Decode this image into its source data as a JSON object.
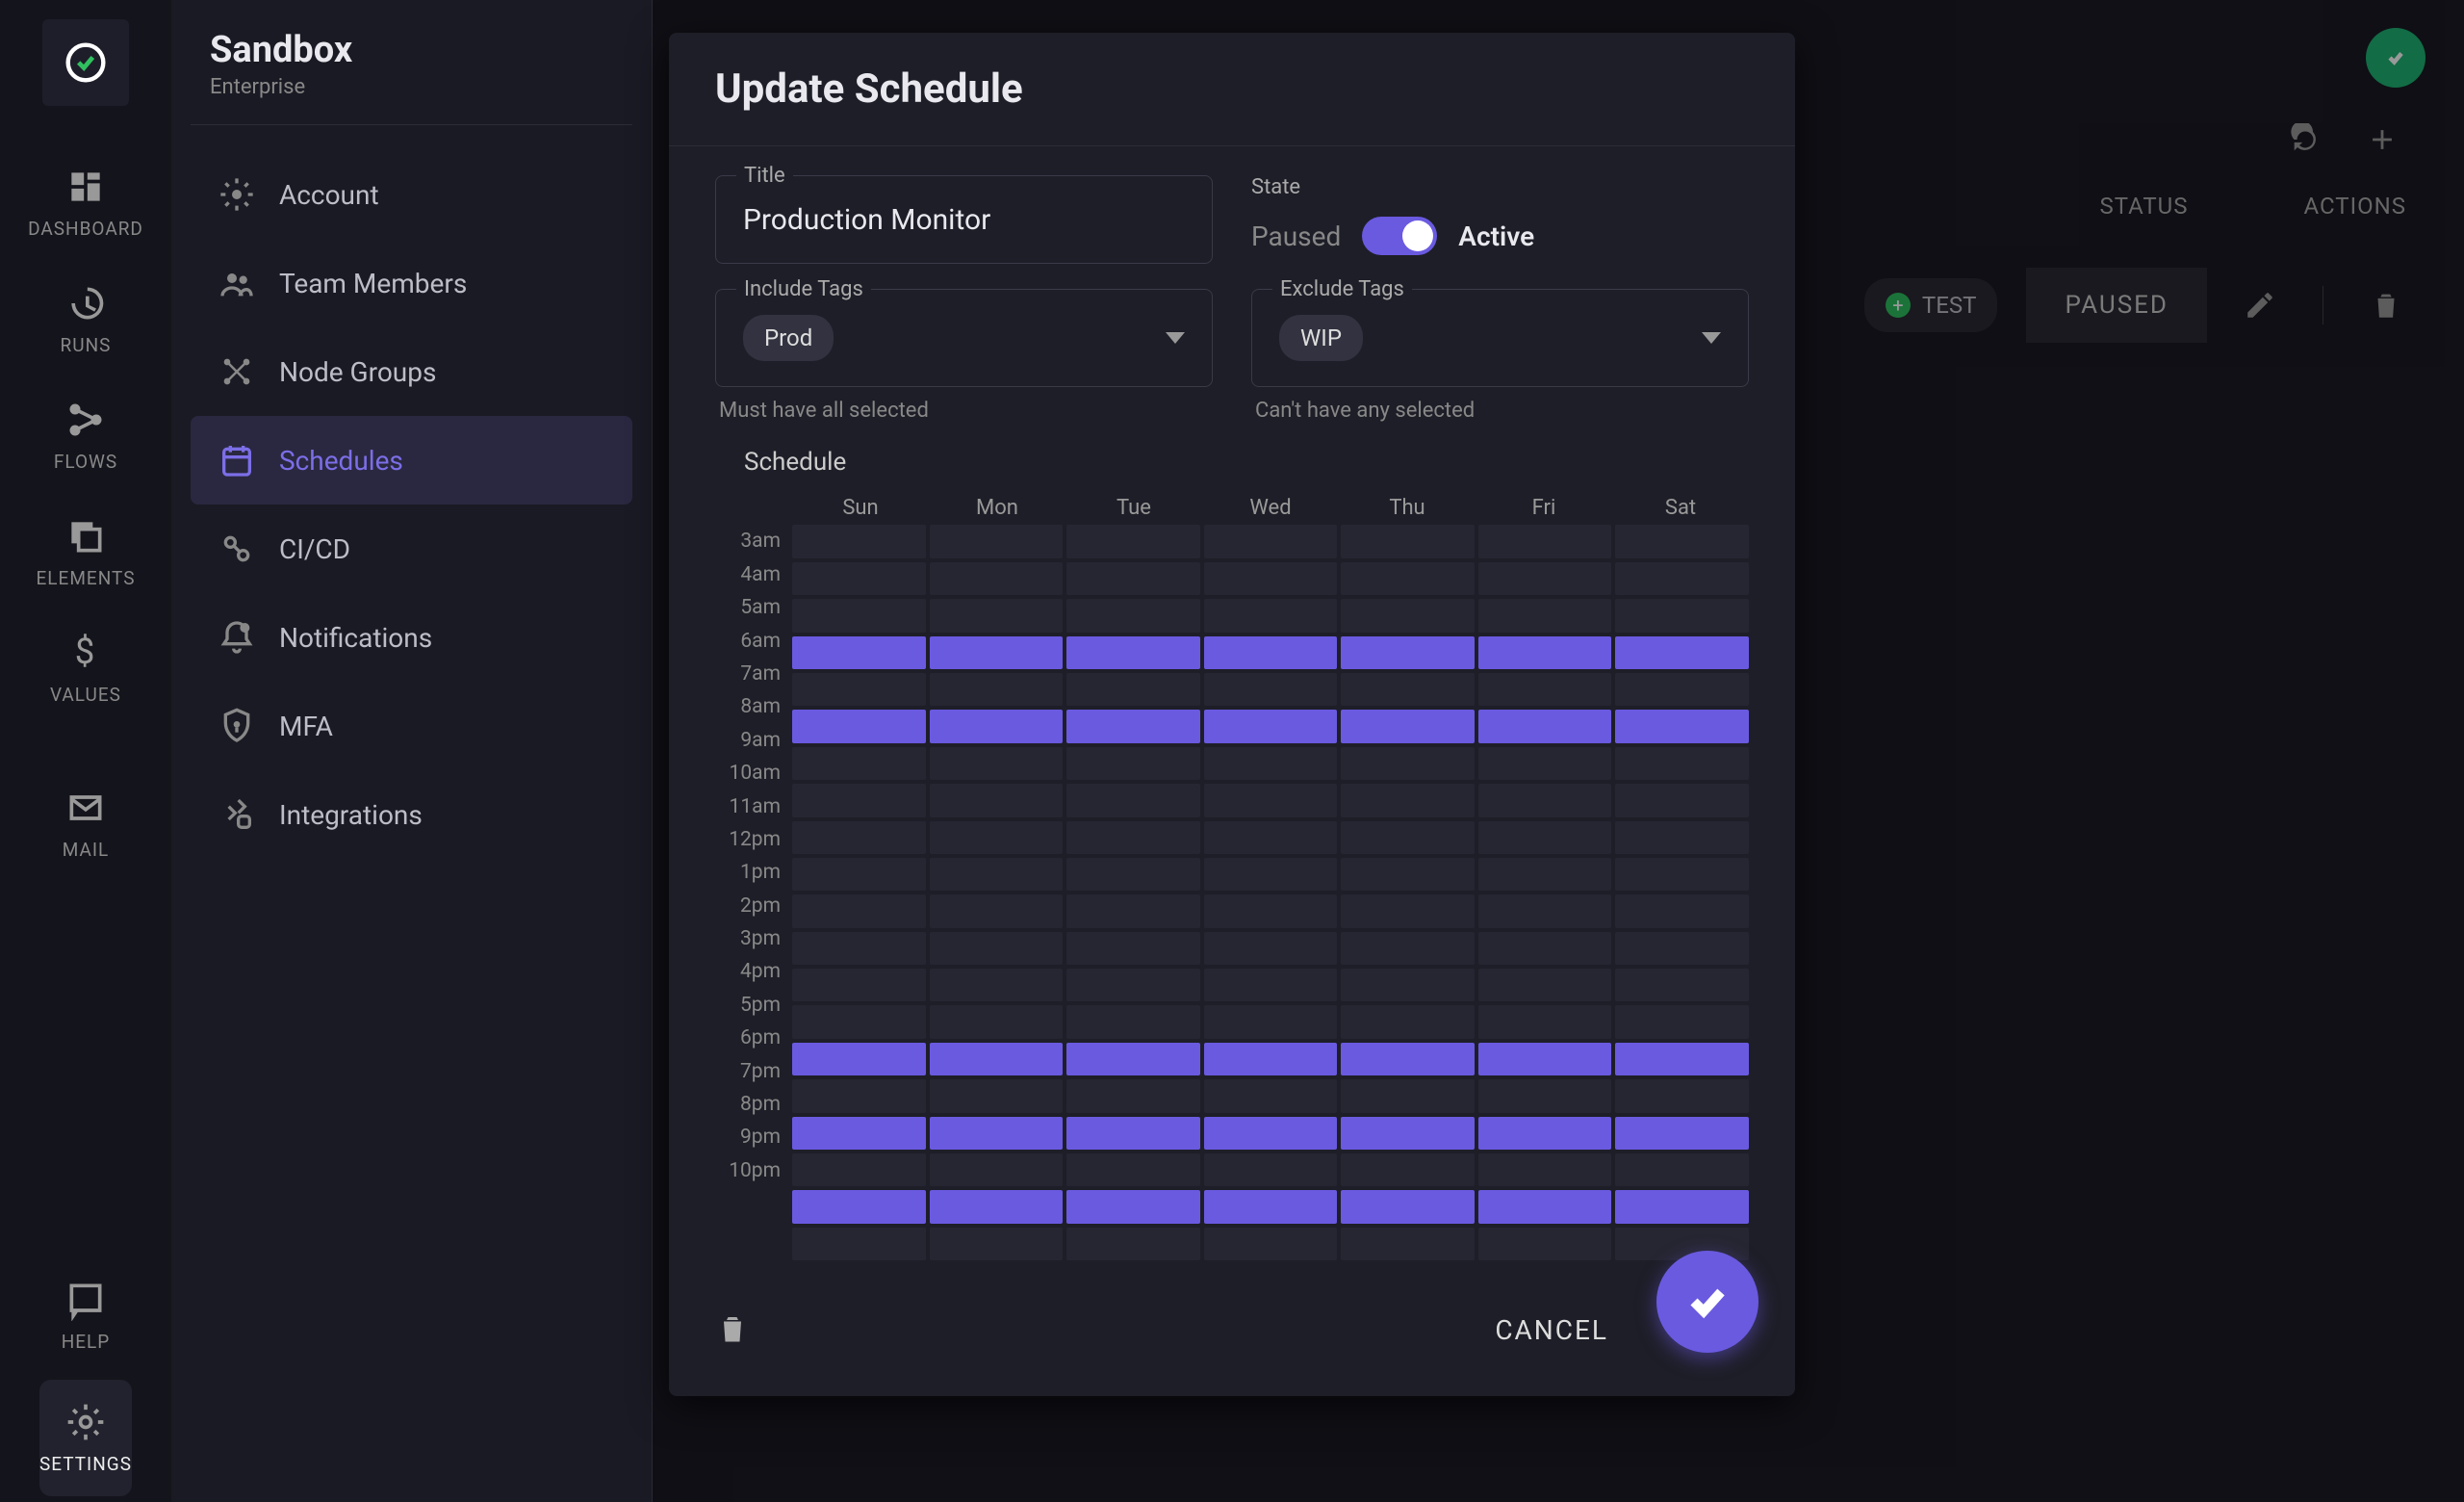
{
  "brand": {
    "name": "Sandbox",
    "tier": "Enterprise"
  },
  "rail": [
    {
      "id": "dashboard",
      "label": "DASHBOARD"
    },
    {
      "id": "runs",
      "label": "RUNS"
    },
    {
      "id": "flows",
      "label": "FLOWS"
    },
    {
      "id": "elements",
      "label": "ELEMENTS"
    },
    {
      "id": "values",
      "label": "VALUES"
    },
    {
      "id": "mail",
      "label": "MAIL"
    },
    {
      "id": "help",
      "label": "HELP"
    },
    {
      "id": "settings",
      "label": "SETTINGS",
      "active": true
    }
  ],
  "sidenav": [
    {
      "id": "account",
      "label": "Account"
    },
    {
      "id": "team-members",
      "label": "Team Members"
    },
    {
      "id": "node-groups",
      "label": "Node Groups"
    },
    {
      "id": "schedules",
      "label": "Schedules",
      "active": true
    },
    {
      "id": "cicd",
      "label": "CI/CD"
    },
    {
      "id": "notifications",
      "label": "Notifications"
    },
    {
      "id": "mfa",
      "label": "MFA"
    },
    {
      "id": "integrations",
      "label": "Integrations"
    }
  ],
  "table": {
    "headers": {
      "status": "STATUS",
      "actions": "ACTIONS"
    },
    "row": {
      "tag": "TEST",
      "status": "PAUSED"
    }
  },
  "modal": {
    "title": "Update Schedule",
    "fields": {
      "title_label": "Title",
      "title_value": "Production Monitor",
      "state_label": "State",
      "paused": "Paused",
      "active": "Active",
      "include_label": "Include Tags",
      "include_tag": "Prod",
      "include_helper": "Must have all selected",
      "exclude_label": "Exclude Tags",
      "exclude_tag": "WIP",
      "exclude_helper": "Can't have any selected"
    },
    "schedule": {
      "label": "Schedule",
      "days": [
        "Sun",
        "Mon",
        "Tue",
        "Wed",
        "Thu",
        "Fri",
        "Sat"
      ],
      "hours": [
        "3am",
        "4am",
        "5am",
        "6am",
        "7am",
        "8am",
        "9am",
        "10am",
        "11am",
        "12pm",
        "1pm",
        "2pm",
        "3pm",
        "4pm",
        "5pm",
        "6pm",
        "7pm",
        "8pm",
        "9pm",
        "10pm"
      ],
      "active_hours": [
        "6am",
        "8am",
        "5pm",
        "7pm",
        "9pm"
      ],
      "colors": {
        "cell_off": "#262632",
        "cell_on": "#6a5ae0"
      }
    },
    "footer": {
      "cancel": "CANCEL"
    }
  },
  "colors": {
    "accent": "#6a5ae0",
    "bg": "#1a1a24",
    "panel": "#1e1e28",
    "rail": "#14141c",
    "success": "#1fb574"
  }
}
